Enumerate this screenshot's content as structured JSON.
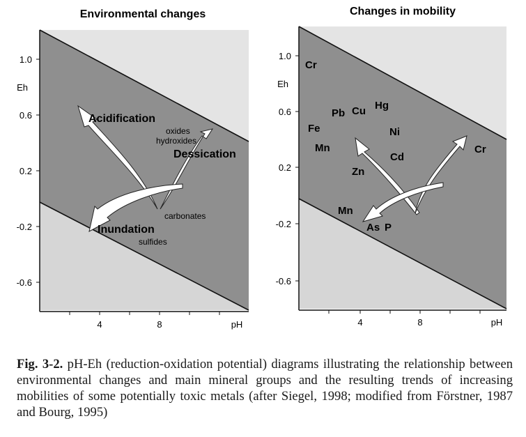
{
  "figure": {
    "left_panel": {
      "title": "Environmental changes",
      "y_ticks": [
        "1.0",
        "0.6",
        "0.2",
        "-0.2",
        "-0.6"
      ],
      "y_axis_label": "Eh",
      "x_ticks": [
        "4",
        "8"
      ],
      "x_axis_label": "pH",
      "arrow_labels": [
        "Acidification",
        "Dessication",
        "Inundation"
      ],
      "mineral_labels": [
        "oxides",
        "hydroxides",
        "carbonates",
        "sulfides"
      ]
    },
    "right_panel": {
      "title": "Changes in mobility",
      "y_ticks": [
        "1.0",
        "0.6",
        "0.2",
        "-0.2",
        "-0.6"
      ],
      "y_axis_label": "Eh",
      "x_ticks": [
        "4",
        "8"
      ],
      "x_axis_label": "pH",
      "element_labels": [
        "Cr",
        "Pb",
        "Cu",
        "Hg",
        "Fe",
        "Ni",
        "Mn",
        "Cd",
        "Cr",
        "Zn",
        "Mn",
        "As",
        "P"
      ]
    }
  },
  "caption": {
    "label": "Fig. 3-2.",
    "text": "pH-Eh (reduction-oxidation potential) diagrams illustrating the relationship between environmental changes and main mineral groups and the resulting trends of increasing mobilities of some potentially toxic metals (after Siegel, 1998; modified from Förstner, 1987 and Bourg, 1995)"
  },
  "colors": {
    "upper_region": "#e4e4e4",
    "middle_band": "#8f8f8f",
    "lower_region": "#d6d6d6",
    "arrow_fill": "#ffffff",
    "text": "#111111"
  }
}
